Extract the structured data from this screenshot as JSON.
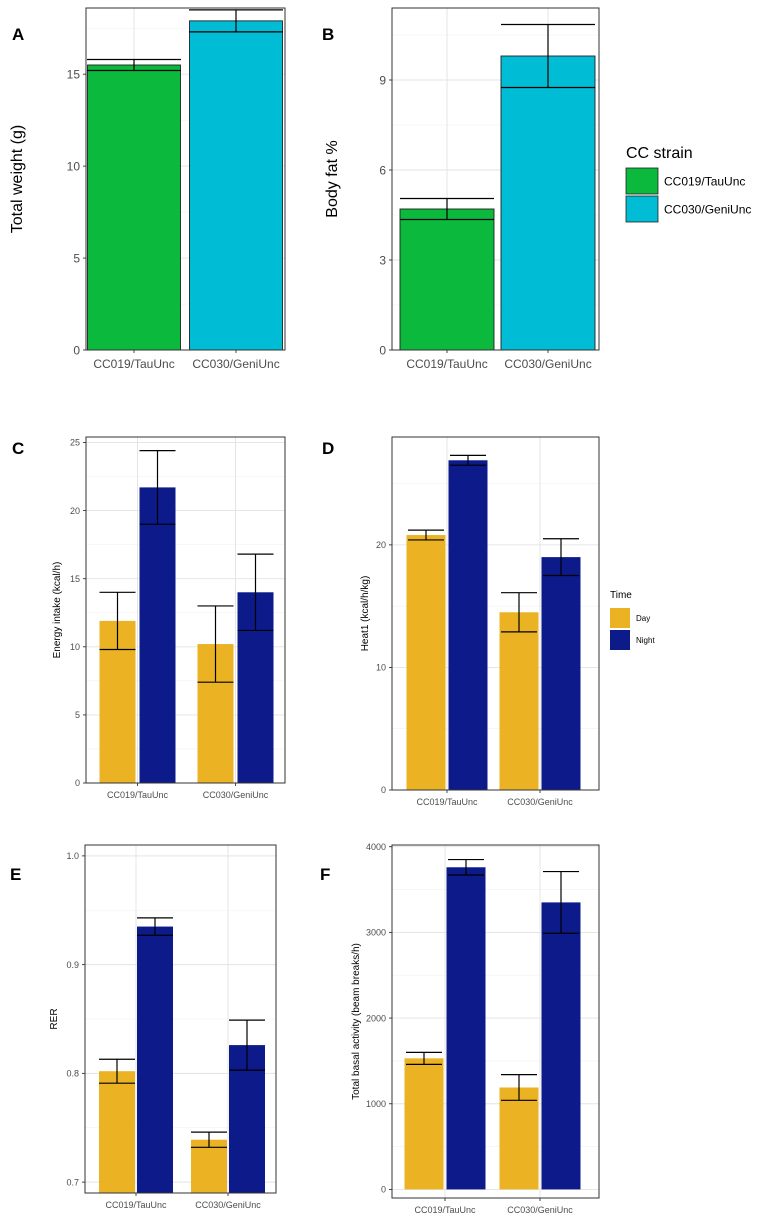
{
  "chart_data": [
    {
      "panel": "A",
      "type": "bar",
      "categories": [
        "CC019/TauUnc",
        "CC030/GeniUnc"
      ],
      "values": [
        15.5,
        17.9
      ],
      "errors": [
        0.3,
        0.6
      ],
      "colors": [
        "#0bba3c",
        "#00bcd4"
      ],
      "xlabel": "",
      "ylabel": "Total weight (g)",
      "ylim": [
        0,
        18.6
      ],
      "yticks": [
        0,
        5,
        10,
        15
      ]
    },
    {
      "panel": "B",
      "type": "bar",
      "categories": [
        "CC019/TauUnc",
        "CC030/GeniUnc"
      ],
      "values": [
        4.7,
        9.8
      ],
      "errors": [
        0.35,
        1.05
      ],
      "colors": [
        "#0bba3c",
        "#00bcd4"
      ],
      "xlabel": "",
      "ylabel": "Body fat %",
      "ylim": [
        0,
        11.4
      ],
      "yticks": [
        0,
        3,
        6,
        9
      ],
      "legend": {
        "title": "CC strain",
        "entries": [
          {
            "label": "CC019/TauUnc",
            "color": "#0bba3c"
          },
          {
            "label": "CC030/GeniUnc",
            "color": "#00bcd4"
          }
        ]
      }
    },
    {
      "panel": "C",
      "type": "bar",
      "categories": [
        "CC019/TauUnc",
        "CC030/GeniUnc"
      ],
      "series": [
        {
          "name": "Day",
          "values": [
            11.9,
            10.2
          ],
          "errors": [
            2.1,
            2.8
          ]
        },
        {
          "name": "Night",
          "values": [
            21.7,
            14.0
          ],
          "errors": [
            2.7,
            2.8
          ]
        }
      ],
      "colors": [
        "#ebb224",
        "#0c1a8a"
      ],
      "xlabel": "",
      "ylabel": "Energy intake (kcal/h)",
      "ylim": [
        0,
        25.4
      ],
      "yticks": [
        0,
        5,
        10,
        15,
        20,
        25
      ]
    },
    {
      "panel": "D",
      "type": "bar",
      "categories": [
        "CC019/TauUnc",
        "CC030/GeniUnc"
      ],
      "series": [
        {
          "name": "Day",
          "values": [
            20.8,
            14.5
          ],
          "errors": [
            0.4,
            1.6
          ]
        },
        {
          "name": "Night",
          "values": [
            26.9,
            19.0
          ],
          "errors": [
            0.4,
            1.5
          ]
        }
      ],
      "colors": [
        "#ebb224",
        "#0c1a8a"
      ],
      "xlabel": "",
      "ylabel": "Heat1 (kcal/h/kg)",
      "ylim": [
        0,
        28.8
      ],
      "yticks": [
        0,
        10,
        20
      ],
      "legend": {
        "title": "Time",
        "entries": [
          {
            "label": "Day",
            "color": "#ebb224"
          },
          {
            "label": "Night",
            "color": "#0c1a8a"
          }
        ]
      }
    },
    {
      "panel": "E",
      "type": "bar",
      "categories": [
        "CC019/TauUnc",
        "CC030/GeniUnc"
      ],
      "series": [
        {
          "name": "Day",
          "values": [
            0.802,
            0.739
          ],
          "errors": [
            0.011,
            0.007
          ]
        },
        {
          "name": "Night",
          "values": [
            0.935,
            0.826
          ],
          "errors": [
            0.008,
            0.023
          ]
        }
      ],
      "colors": [
        "#ebb224",
        "#0c1a8a"
      ],
      "xlabel": "",
      "ylabel": "RER",
      "ylim": [
        0.69,
        1.01
      ],
      "baseline": 0.69,
      "yticks": [
        0.7,
        0.8,
        0.9,
        1.0
      ],
      "yticklabels": [
        "0.7",
        "0.8",
        "0.9",
        "1.0"
      ]
    },
    {
      "panel": "F",
      "type": "bar",
      "categories": [
        "CC019/TauUnc",
        "CC030/GeniUnc"
      ],
      "series": [
        {
          "name": "Day",
          "values": [
            1530,
            1190
          ],
          "errors": [
            70,
            150
          ]
        },
        {
          "name": "Night",
          "values": [
            3760,
            3350
          ],
          "errors": [
            90,
            360
          ]
        }
      ],
      "colors": [
        "#ebb224",
        "#0c1a8a"
      ],
      "xlabel": "",
      "ylabel": "Total basal activity (beam breaks/h)",
      "ylim": [
        -100,
        4020
      ],
      "baseline": 0,
      "yticks": [
        0,
        1000,
        2000,
        3000,
        4000
      ]
    }
  ]
}
